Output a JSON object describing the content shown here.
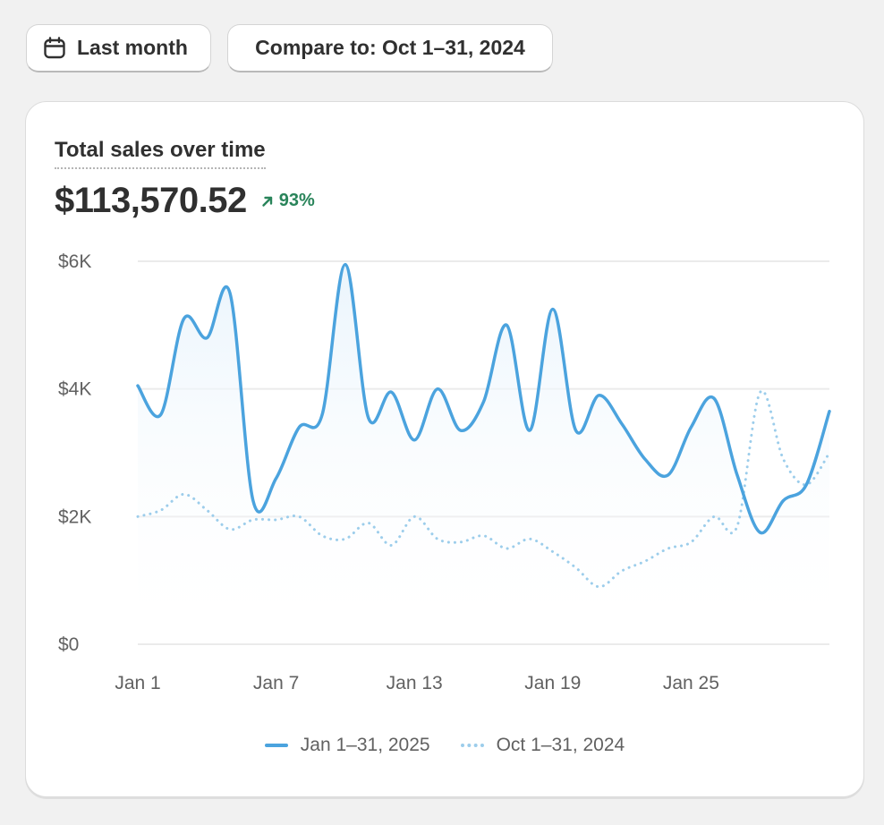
{
  "toolbar": {
    "date_label": "Last month",
    "compare_label": "Compare to: Oct 1–31, 2024"
  },
  "card": {
    "title": "Total sales over time",
    "metric": "$113,570.52",
    "delta": "93%",
    "delta_direction": "up"
  },
  "colors": {
    "primary_series": "#4ba3de",
    "comparison_series": "#9ccdeb",
    "positive": "#29845a"
  },
  "chart_data": {
    "type": "line",
    "x": [
      "Jan 1",
      "Jan 2",
      "Jan 3",
      "Jan 4",
      "Jan 5",
      "Jan 6",
      "Jan 7",
      "Jan 8",
      "Jan 9",
      "Jan 10",
      "Jan 11",
      "Jan 12",
      "Jan 13",
      "Jan 14",
      "Jan 15",
      "Jan 16",
      "Jan 17",
      "Jan 18",
      "Jan 19",
      "Jan 20",
      "Jan 21",
      "Jan 22",
      "Jan 23",
      "Jan 24",
      "Jan 25",
      "Jan 26",
      "Jan 27",
      "Jan 28",
      "Jan 29",
      "Jan 30",
      "Jan 31"
    ],
    "xticks": [
      "Jan 1",
      "Jan 7",
      "Jan 13",
      "Jan 19",
      "Jan 25"
    ],
    "yticks": [
      "$0",
      "$2K",
      "$4K",
      "$6K"
    ],
    "ylim": [
      0,
      6000
    ],
    "series": [
      {
        "name": "Jan 1–31, 2025",
        "style": "solid",
        "values": [
          4050,
          3600,
          5100,
          4800,
          5500,
          2250,
          2600,
          3400,
          3600,
          5950,
          3550,
          3950,
          3200,
          4000,
          3350,
          3800,
          5000,
          3350,
          5250,
          3350,
          3900,
          3450,
          2900,
          2650,
          3400,
          3850,
          2650,
          1750,
          2250,
          2500,
          3650
        ]
      },
      {
        "name": "Oct 1–31, 2024",
        "style": "dotted",
        "values": [
          2000,
          2100,
          2350,
          2100,
          1800,
          1950,
          1950,
          2000,
          1700,
          1650,
          1900,
          1550,
          2000,
          1650,
          1600,
          1700,
          1500,
          1650,
          1450,
          1200,
          900,
          1150,
          1300,
          1500,
          1600,
          2000,
          1850,
          3950,
          2900,
          2500,
          3000
        ]
      }
    ],
    "legend": "bottom-center",
    "grid": true
  }
}
